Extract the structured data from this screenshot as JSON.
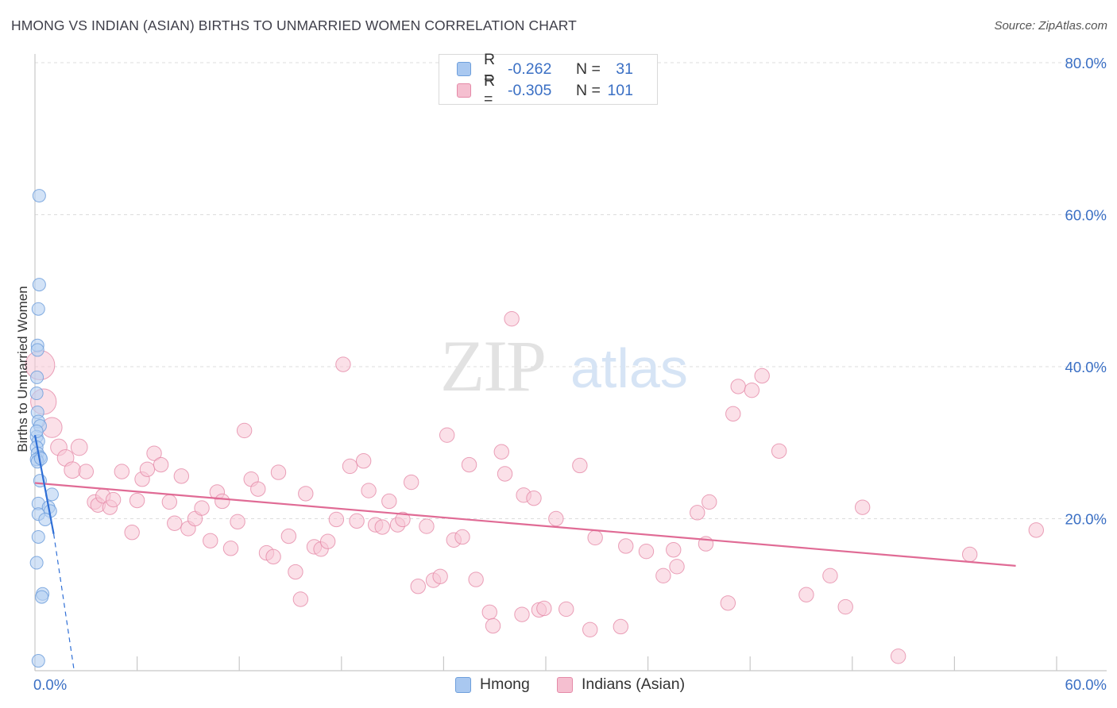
{
  "title": "HMONG VS INDIAN (ASIAN) BIRTHS TO UNMARRIED WOMEN CORRELATION CHART",
  "source": "Source: ZipAtlas.com",
  "watermark": {
    "zip": "ZIP",
    "atlas": "atlas"
  },
  "legend": {
    "rows": [
      {
        "r_label": "R =",
        "r_value": "-0.262",
        "n_label": "N =",
        "n_value": "31",
        "color": "#a9c8f0",
        "border": "#6e9fdc"
      },
      {
        "r_label": "R =",
        "r_value": "-0.305",
        "n_label": "N =",
        "n_value": "101",
        "color": "#f5bfd0",
        "border": "#e58aa8"
      }
    ]
  },
  "bottom_legend": {
    "hmong": "Hmong",
    "indians": "Indians (Asian)"
  },
  "chart_data": {
    "type": "scatter",
    "title": "HMONG VS INDIAN (ASIAN) BIRTHS TO UNMARRIED WOMEN CORRELATION CHART",
    "ylabel": "Births to Unmarried Women",
    "xlabel": "",
    "xlim": [
      0,
      60
    ],
    "ylim": [
      0,
      80
    ],
    "x_tick_labels": [
      "0.0%",
      "60.0%"
    ],
    "y_tick_labels": [
      "80.0%",
      "60.0%",
      "40.0%",
      "20.0%"
    ],
    "y_ticks": [
      80,
      60,
      40,
      20
    ],
    "grid": true,
    "series": [
      {
        "name": "Hmong",
        "color": "#6e9fdc",
        "fill": "#b6d0f2",
        "trend": {
          "x": [
            0.0,
            1.1
          ],
          "y": [
            31.0,
            18.0
          ],
          "dash_to": [
            2.3,
            0.0
          ]
        },
        "points": [
          [
            0.25,
            62.5
          ],
          [
            0.25,
            50.8
          ],
          [
            0.2,
            47.6
          ],
          [
            0.15,
            42.8
          ],
          [
            0.15,
            42.2
          ],
          [
            0.12,
            38.6
          ],
          [
            0.1,
            36.5
          ],
          [
            0.15,
            34.0
          ],
          [
            0.2,
            32.8
          ],
          [
            0.3,
            32.2
          ],
          [
            0.1,
            30.8
          ],
          [
            0.2,
            30.2
          ],
          [
            0.1,
            29.4
          ],
          [
            0.15,
            28.6
          ],
          [
            0.3,
            28.1
          ],
          [
            0.1,
            27.8
          ],
          [
            0.15,
            27.5
          ],
          [
            0.35,
            27.9
          ],
          [
            1.0,
            23.2
          ],
          [
            0.2,
            22.0
          ],
          [
            0.8,
            21.5
          ],
          [
            0.9,
            21.0
          ],
          [
            0.2,
            20.6
          ],
          [
            0.6,
            19.9
          ],
          [
            0.2,
            17.6
          ],
          [
            0.1,
            14.2
          ],
          [
            0.45,
            10.1
          ],
          [
            0.4,
            9.7
          ],
          [
            0.2,
            1.3
          ],
          [
            0.1,
            31.5
          ],
          [
            0.3,
            25.0
          ]
        ]
      },
      {
        "name": "Indians (Asian)",
        "color": "#e58aa8",
        "fill": "#f7c6d5",
        "trend": {
          "x": [
            0.0,
            57.6
          ],
          "y": [
            24.7,
            13.8
          ]
        },
        "points": [
          [
            0.3,
            40.2,
            16
          ],
          [
            0.5,
            35.4,
            14
          ],
          [
            1.0,
            32.0,
            11
          ],
          [
            1.4,
            29.4,
            9
          ],
          [
            2.6,
            29.4,
            9
          ],
          [
            1.8,
            28.0,
            9
          ],
          [
            2.2,
            26.4,
            9
          ],
          [
            3.0,
            26.2,
            8
          ],
          [
            3.5,
            22.2,
            8
          ],
          [
            3.7,
            21.8,
            8
          ],
          [
            4.0,
            23.0,
            8
          ],
          [
            4.4,
            21.5,
            8
          ],
          [
            4.6,
            22.5,
            8
          ],
          [
            5.1,
            26.2,
            8
          ],
          [
            5.7,
            18.2,
            8
          ],
          [
            6.0,
            22.4,
            8
          ],
          [
            6.3,
            25.2,
            8
          ],
          [
            6.6,
            26.5,
            8
          ],
          [
            7.0,
            28.6,
            8
          ],
          [
            7.4,
            27.1,
            8
          ],
          [
            7.9,
            22.2,
            8
          ],
          [
            8.2,
            19.4,
            8
          ],
          [
            8.6,
            25.6,
            8
          ],
          [
            9.0,
            18.7,
            8
          ],
          [
            9.4,
            20.0,
            8
          ],
          [
            9.8,
            21.4,
            8
          ],
          [
            10.3,
            17.1,
            8
          ],
          [
            10.7,
            23.5,
            8
          ],
          [
            11.0,
            22.3,
            8
          ],
          [
            11.5,
            16.1,
            8
          ],
          [
            11.9,
            19.6,
            8
          ],
          [
            12.3,
            31.6,
            8
          ],
          [
            12.7,
            25.2,
            8
          ],
          [
            13.1,
            23.9,
            8
          ],
          [
            13.6,
            15.5,
            8
          ],
          [
            14.0,
            15.0,
            8
          ],
          [
            14.3,
            26.1,
            8
          ],
          [
            14.9,
            17.7,
            8
          ],
          [
            15.3,
            13.0,
            8
          ],
          [
            15.6,
            9.4,
            8
          ],
          [
            15.9,
            23.3,
            8
          ],
          [
            16.4,
            16.3,
            8
          ],
          [
            16.8,
            16.0,
            8
          ],
          [
            17.2,
            17.0,
            8
          ],
          [
            17.7,
            19.9,
            8
          ],
          [
            18.1,
            40.3,
            8
          ],
          [
            18.5,
            26.9,
            8
          ],
          [
            18.9,
            19.7,
            8
          ],
          [
            19.3,
            27.6,
            8
          ],
          [
            19.6,
            23.7,
            8
          ],
          [
            20.0,
            19.2,
            8
          ],
          [
            20.4,
            18.9,
            8
          ],
          [
            20.8,
            22.3,
            8
          ],
          [
            21.3,
            19.2,
            8
          ],
          [
            21.6,
            19.9,
            8
          ],
          [
            22.1,
            24.8,
            8
          ],
          [
            22.5,
            11.1,
            8
          ],
          [
            23.0,
            19.0,
            8
          ],
          [
            23.4,
            11.9,
            8
          ],
          [
            23.8,
            12.4,
            8
          ],
          [
            24.2,
            31.0,
            8
          ],
          [
            24.6,
            17.2,
            8
          ],
          [
            25.1,
            17.6,
            8
          ],
          [
            25.5,
            27.1,
            8
          ],
          [
            25.9,
            12.0,
            8
          ],
          [
            26.7,
            7.7,
            8
          ],
          [
            26.9,
            5.9,
            8
          ],
          [
            27.4,
            28.8,
            8
          ],
          [
            27.6,
            25.9,
            8
          ],
          [
            28.0,
            46.3,
            8
          ],
          [
            28.6,
            7.4,
            8
          ],
          [
            28.7,
            23.1,
            8
          ],
          [
            29.3,
            22.7,
            8
          ],
          [
            29.6,
            8.0,
            8
          ],
          [
            29.9,
            8.2,
            8
          ],
          [
            30.6,
            20.0,
            8
          ],
          [
            31.2,
            8.1,
            8
          ],
          [
            32.0,
            27.0,
            8
          ],
          [
            32.6,
            5.4,
            8
          ],
          [
            32.9,
            17.5,
            8
          ],
          [
            34.4,
            5.8,
            8
          ],
          [
            34.7,
            16.4,
            8
          ],
          [
            35.9,
            15.7,
            8
          ],
          [
            36.9,
            12.5,
            8
          ],
          [
            37.5,
            15.9,
            8
          ],
          [
            37.7,
            13.7,
            8
          ],
          [
            38.9,
            20.8,
            8
          ],
          [
            39.4,
            16.7,
            8
          ],
          [
            39.6,
            22.2,
            8
          ],
          [
            40.7,
            8.9,
            8
          ],
          [
            41.3,
            37.4,
            8
          ],
          [
            42.1,
            36.9,
            8
          ],
          [
            41.0,
            33.8,
            8
          ],
          [
            42.7,
            38.8,
            8
          ],
          [
            43.7,
            28.9,
            8
          ],
          [
            45.3,
            10.0,
            8
          ],
          [
            46.7,
            12.5,
            8
          ],
          [
            47.6,
            8.4,
            8
          ],
          [
            48.6,
            21.5,
            8
          ],
          [
            50.7,
            1.9,
            8
          ],
          [
            54.9,
            15.3,
            8
          ]
        ]
      }
    ],
    "extra_points": [
      [
        58.8,
        18.5,
        8
      ]
    ]
  }
}
